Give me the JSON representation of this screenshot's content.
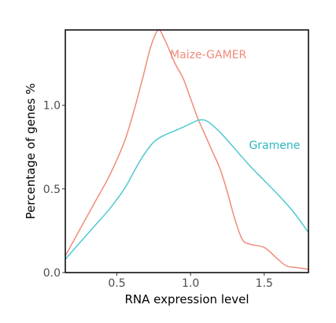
{
  "chart_data": {
    "type": "line",
    "xlabel": "RNA expression level",
    "ylabel": "Percentage of genes %",
    "xlim": [
      0.15,
      1.8
    ],
    "ylim": [
      0.0,
      1.45
    ],
    "xticks": [
      0.5,
      1.0,
      1.5
    ],
    "xtick_labels": [
      "0.5",
      "1.0",
      "1.5"
    ],
    "yticks": [
      0.0,
      0.5,
      1.0
    ],
    "ytick_labels": [
      "0.0",
      "0.5",
      "1.0"
    ],
    "grid": false,
    "series": [
      {
        "name": "Maize-GAMER",
        "color": "#f08b7b",
        "points": [
          [
            0.15,
            0.1
          ],
          [
            0.25,
            0.26
          ],
          [
            0.35,
            0.42
          ],
          [
            0.45,
            0.58
          ],
          [
            0.55,
            0.78
          ],
          [
            0.62,
            0.98
          ],
          [
            0.68,
            1.18
          ],
          [
            0.73,
            1.35
          ],
          [
            0.78,
            1.45
          ],
          [
            0.82,
            1.4
          ],
          [
            0.86,
            1.32
          ],
          [
            0.9,
            1.24
          ],
          [
            0.95,
            1.16
          ],
          [
            1.0,
            1.04
          ],
          [
            1.05,
            0.92
          ],
          [
            1.1,
            0.82
          ],
          [
            1.15,
            0.72
          ],
          [
            1.2,
            0.62
          ],
          [
            1.25,
            0.48
          ],
          [
            1.3,
            0.32
          ],
          [
            1.35,
            0.2
          ],
          [
            1.4,
            0.17
          ],
          [
            1.5,
            0.15
          ],
          [
            1.58,
            0.09
          ],
          [
            1.65,
            0.04
          ],
          [
            1.72,
            0.03
          ],
          [
            1.8,
            0.02
          ]
        ]
      },
      {
        "name": "Gramene",
        "color": "#4fc9cf",
        "points": [
          [
            0.15,
            0.08
          ],
          [
            0.25,
            0.18
          ],
          [
            0.35,
            0.28
          ],
          [
            0.45,
            0.38
          ],
          [
            0.55,
            0.5
          ],
          [
            0.62,
            0.61
          ],
          [
            0.68,
            0.7
          ],
          [
            0.75,
            0.78
          ],
          [
            0.82,
            0.82
          ],
          [
            0.9,
            0.85
          ],
          [
            1.0,
            0.89
          ],
          [
            1.05,
            0.91
          ],
          [
            1.1,
            0.91
          ],
          [
            1.15,
            0.88
          ],
          [
            1.22,
            0.82
          ],
          [
            1.3,
            0.74
          ],
          [
            1.4,
            0.64
          ],
          [
            1.5,
            0.55
          ],
          [
            1.6,
            0.46
          ],
          [
            1.7,
            0.36
          ],
          [
            1.8,
            0.24
          ]
        ]
      }
    ]
  }
}
